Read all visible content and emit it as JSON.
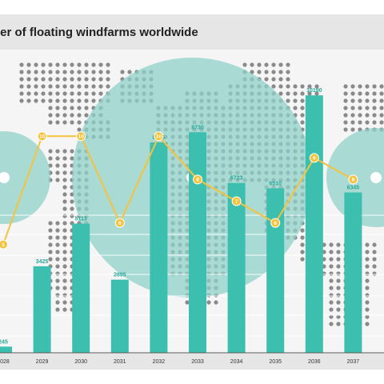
{
  "chart_data": {
    "type": "bar",
    "title": "ber of floating windfarms worldwide",
    "categories": [
      "2028",
      "2029",
      "2030",
      "2031",
      "2032",
      "2033",
      "2034",
      "2035",
      "2036",
      "2037"
    ],
    "series": [
      {
        "type": "bar",
        "values": [
          245,
          3425,
          5113,
          2895,
          8326,
          8730,
          6723,
          6510,
          10190,
          6345
        ]
      },
      {
        "type": "line",
        "values": [
          5,
          10,
          10,
          6,
          10,
          8,
          7,
          6,
          9,
          8
        ]
      }
    ],
    "ylim_bars": [
      0,
      12000
    ],
    "ylim_line": [
      0,
      14
    ],
    "grid": true,
    "legend": "none"
  },
  "colors": {
    "background": "#e6e6e6",
    "plot_bg": "#f5f5f5",
    "bar": "#3dbfb0",
    "bar_label": "#27a899",
    "line": "#f5c33b",
    "map_dots": "#8a8a8a",
    "circle": "#8fd2c8"
  }
}
